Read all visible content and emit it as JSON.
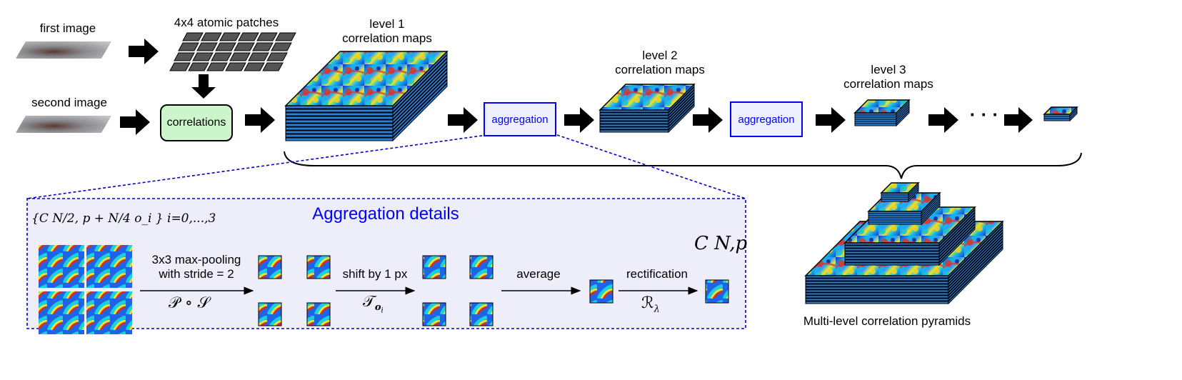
{
  "top": {
    "first_image": "first image",
    "second_image": "second image",
    "atomic_patches": "4x4 atomic patches",
    "correlations": "correlations",
    "level1": [
      "level 1",
      "correlation maps"
    ],
    "level2": [
      "level 2",
      "correlation maps"
    ],
    "level3": [
      "level 3",
      "correlation maps"
    ],
    "aggregation_1": "aggregation",
    "aggregation_2": "aggregation",
    "ellipsis": "· · ·"
  },
  "details": {
    "title": "Aggregation details",
    "input_formula": "{C N/2, p + N/4 o_i } i=0,...,3",
    "output_formula": "C N,p",
    "maxpool_label": [
      "3x3 max-pooling",
      "with stride = 2"
    ],
    "maxpool_op": "𝒫 ∘ 𝒮",
    "shift_label": "shift by 1 px",
    "shift_op": "𝒯",
    "shift_op_sub": "o",
    "shift_op_subsub": "i",
    "average_label": "average",
    "rect_label": "rectification",
    "rect_op": "ℛ",
    "rect_op_sub": "λ"
  },
  "pyramid_caption": "Multi-level correlation pyramids",
  "colors": {
    "accent_blue": "#0000ff",
    "details_bg": "#eeeefa",
    "correlations_fill": "#ccf5cc",
    "aggregation_fill": "#eef0ff",
    "slab_blue": "#2a7fd6"
  }
}
